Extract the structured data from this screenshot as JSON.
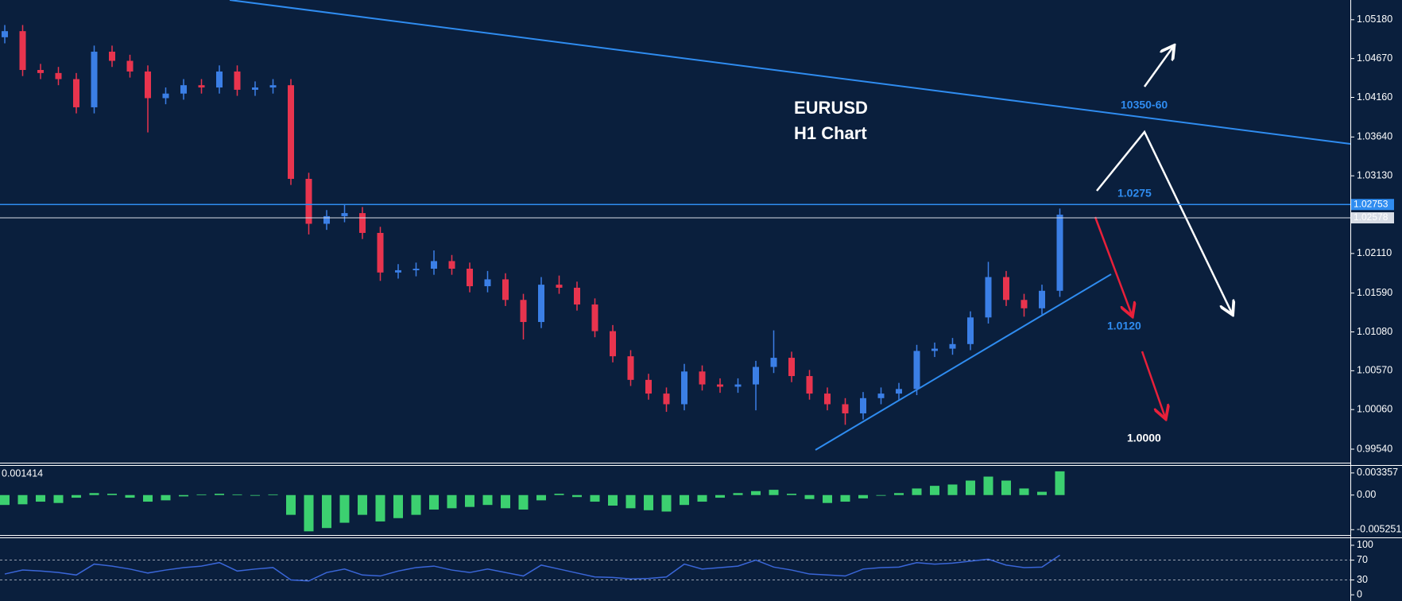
{
  "chart_data": [
    {
      "type": "candlestick",
      "title": "EURUSD",
      "subtitle": "H1 Chart",
      "up_color": "#3b7fe6",
      "down_color": "#e8344e",
      "open": [
        1.0495,
        1.0503,
        1.0452,
        1.0448,
        1.044,
        1.0403,
        1.0476,
        1.0464,
        1.045,
        1.0415,
        1.0421,
        1.0432,
        1.0429,
        1.045,
        1.0426,
        1.0429,
        1.0432,
        1.0309,
        1.025,
        1.026,
        1.0264,
        1.0238,
        1.0186,
        1.0189,
        1.0191,
        1.0201,
        1.0191,
        1.0168,
        1.0177,
        1.015,
        1.0121,
        1.017,
        1.0166,
        1.0144,
        1.0109,
        1.0076,
        1.0045,
        1.0027,
        1.0013,
        1.0056,
        1.0039,
        1.0036,
        1.0039,
        1.0062,
        1.0074,
        1.005,
        1.0027,
        1.0013,
        1.0001,
        1.0021,
        1.0027,
        1.0033,
        1.0083,
        1.0086,
        1.0092,
        1.0127,
        1.018,
        1.015,
        1.0139,
        1.0162
      ],
      "high": [
        1.0511,
        1.0511,
        1.046,
        1.0456,
        1.0448,
        1.0484,
        1.0484,
        1.0472,
        1.0458,
        1.0429,
        1.044,
        1.044,
        1.0458,
        1.0458,
        1.0437,
        1.044,
        1.044,
        1.0317,
        1.0268,
        1.0276,
        1.0272,
        1.0246,
        1.0197,
        1.0199,
        1.0215,
        1.0209,
        1.0199,
        1.0188,
        1.0185,
        1.0158,
        1.018,
        1.0182,
        1.0174,
        1.0152,
        1.0117,
        1.0084,
        1.0053,
        1.0035,
        1.0066,
        1.0064,
        1.0047,
        1.0047,
        1.007,
        1.011,
        1.0082,
        1.0058,
        1.0035,
        1.0021,
        1.0029,
        1.0035,
        1.0041,
        1.0091,
        1.0094,
        1.01,
        1.0135,
        1.02,
        1.0188,
        1.0158,
        1.017,
        1.027
      ],
      "low": [
        1.0487,
        1.0444,
        1.044,
        1.0432,
        1.0395,
        1.0395,
        1.0456,
        1.0442,
        1.037,
        1.0407,
        1.0413,
        1.0421,
        1.0421,
        1.0418,
        1.0418,
        1.0421,
        1.0301,
        1.0236,
        1.0242,
        1.0252,
        1.023,
        1.0175,
        1.0178,
        1.0181,
        1.0183,
        1.0183,
        1.016,
        1.016,
        1.0142,
        1.0098,
        1.0113,
        1.0158,
        1.0136,
        1.0101,
        1.0068,
        1.0037,
        1.0019,
        1.0003,
        1.0005,
        1.0031,
        1.0028,
        1.0028,
        1.0005,
        1.0054,
        1.0042,
        1.0019,
        1.0005,
        0.9986,
        0.9993,
        1.0013,
        1.0019,
        1.0025,
        1.0075,
        1.0078,
        1.0084,
        1.0119,
        1.0142,
        1.0128,
        1.0131,
        1.0154
      ],
      "close": [
        1.0503,
        1.0452,
        1.0448,
        1.044,
        1.0403,
        1.0476,
        1.0464,
        1.045,
        1.0415,
        1.0421,
        1.0432,
        1.0429,
        1.045,
        1.0426,
        1.0429,
        1.0432,
        1.0309,
        1.025,
        1.026,
        1.0264,
        1.0238,
        1.0186,
        1.0189,
        1.0191,
        1.0201,
        1.0191,
        1.0168,
        1.0177,
        1.015,
        1.0121,
        1.017,
        1.0166,
        1.0144,
        1.0109,
        1.0076,
        1.0045,
        1.0027,
        1.0013,
        1.0056,
        1.0039,
        1.0036,
        1.0039,
        1.0062,
        1.0074,
        1.005,
        1.0027,
        1.0013,
        1.0001,
        1.0021,
        1.0027,
        1.0033,
        1.0083,
        1.0086,
        1.0092,
        1.0127,
        1.018,
        1.015,
        1.0139,
        1.0162,
        1.0262
      ],
      "ylim": [
        0.99352,
        1.05439
      ],
      "yticks": [
        {
          "value": 1.0518,
          "label": "1.05180"
        },
        {
          "value": 1.0467,
          "label": "1.04670"
        },
        {
          "value": 1.0416,
          "label": "1.04160"
        },
        {
          "value": 1.0364,
          "label": "1.03640"
        },
        {
          "value": 1.0313,
          "label": "1.03130"
        },
        {
          "value": 1.0211,
          "label": "1.02110"
        },
        {
          "value": 1.0159,
          "label": "1.01590"
        },
        {
          "value": 1.0108,
          "label": "1.01080"
        },
        {
          "value": 1.0057,
          "label": "1.00570"
        },
        {
          "value": 1.0006,
          "label": "1.00060"
        },
        {
          "value": 0.9954,
          "label": "0.99540"
        }
      ],
      "price_lines": [
        {
          "value": 1.02753,
          "color": "#2f8cf0"
        },
        {
          "value": 1.02578,
          "color": "#d8dde6"
        }
      ],
      "annotations": [
        {
          "text": "10350-60",
          "color": "#2f8cf0"
        },
        {
          "text": "1.0275",
          "color": "#2f8cf0"
        },
        {
          "text": "1.0120",
          "color": "#2f8cf0"
        },
        {
          "text": "1.0000",
          "color": "#ffffff"
        }
      ]
    },
    {
      "type": "bar",
      "current_value": 0.001414,
      "color": "#3cd070",
      "values": [
        -0.0015,
        -0.0014,
        -0.001,
        -0.0012,
        -0.0004,
        0.0003,
        0.0002,
        -0.0004,
        -0.001,
        -0.0008,
        -0.0002,
        0.0001,
        0.0002,
        0.0001,
        -0.0001,
        0.0001,
        -0.003,
        -0.0055,
        -0.005,
        -0.0042,
        -0.003,
        -0.004,
        -0.0035,
        -0.003,
        -0.0022,
        -0.002,
        -0.0018,
        -0.0015,
        -0.002,
        -0.0022,
        -0.0008,
        0.0002,
        -0.0003,
        -0.001,
        -0.0016,
        -0.002,
        -0.0023,
        -0.0025,
        -0.0015,
        -0.001,
        -0.0004,
        0.0003,
        0.0006,
        0.0008,
        0.0002,
        -0.0006,
        -0.0012,
        -0.001,
        -0.0005,
        -0.0001,
        0.0003,
        0.001,
        0.0014,
        0.0016,
        0.0022,
        0.0028,
        0.0022,
        0.001,
        0.0005,
        0.0036
      ],
      "ylim": [
        -0.00606,
        0.00443
      ],
      "yticks": [
        {
          "value": 0.003357,
          "label": "0.003357"
        },
        {
          "value": 0,
          "label": "0.00"
        },
        {
          "value": -0.005251,
          "label": "-0.005251"
        }
      ]
    },
    {
      "type": "line",
      "color": "#3a66d8",
      "values": [
        42,
        50,
        48,
        45,
        40,
        62,
        58,
        52,
        44,
        50,
        55,
        58,
        65,
        48,
        52,
        55,
        30,
        28,
        45,
        52,
        40,
        38,
        48,
        55,
        58,
        50,
        45,
        52,
        45,
        38,
        60,
        52,
        44,
        36,
        35,
        32,
        33,
        36,
        62,
        52,
        55,
        58,
        70,
        56,
        50,
        42,
        40,
        38,
        52,
        55,
        56,
        65,
        62,
        64,
        68,
        72,
        60,
        55,
        56,
        80
      ],
      "ylim": [
        -12.5,
        114.3
      ],
      "yticks": [
        100,
        70,
        30,
        0
      ],
      "levels": [
        70,
        30
      ]
    }
  ]
}
